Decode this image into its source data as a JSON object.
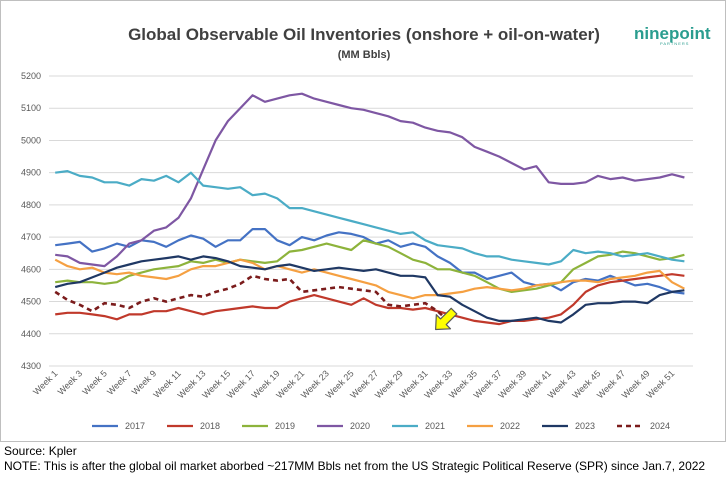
{
  "branding": {
    "logo_text": "ninepoint",
    "logo_sub": "PARTNERS"
  },
  "footer": {
    "source": "Source: Kpler",
    "note": "NOTE: This is after the global oil market aborbed ~217MM Bbls net from the US Strategic Political Reserve (SPR) since Jan.7, 2022"
  },
  "chart_data": {
    "type": "line",
    "title": "Global Observable Oil Inventories (onshore + oil-on-water)",
    "subtitle": "(MM Bbls)",
    "ylim": [
      4300,
      5200
    ],
    "yticks": [
      4300,
      4400,
      4500,
      4600,
      4700,
      4800,
      4900,
      5000,
      5100,
      5200
    ],
    "x_count": 52,
    "x_tick_labels": [
      "Week 1",
      "Week 3",
      "Week 5",
      "Week 7",
      "Week 9",
      "Week 11",
      "Week 13",
      "Week 15",
      "Week 17",
      "Week 19",
      "Week 21",
      "Week 23",
      "Week 25",
      "Week 27",
      "Week 29",
      "Week 31",
      "Week 33",
      "Week 35",
      "Week 37",
      "Week 39",
      "Week 41",
      "Week 43",
      "Week 45",
      "Week 47",
      "Week 49",
      "Week 51"
    ],
    "x_tick_weeks": [
      1,
      3,
      5,
      7,
      9,
      11,
      13,
      15,
      17,
      19,
      21,
      23,
      25,
      27,
      29,
      31,
      33,
      35,
      37,
      39,
      41,
      43,
      45,
      47,
      49,
      51
    ],
    "grid": true,
    "legend_position": "bottom",
    "series": [
      {
        "name": "2017",
        "color": "#4472c4",
        "dashed": false,
        "values": [
          4675,
          4680,
          4685,
          4655,
          4665,
          4680,
          4670,
          4690,
          4685,
          4670,
          4690,
          4705,
          4695,
          4670,
          4690,
          4690,
          4725,
          4725,
          4690,
          4675,
          4700,
          4690,
          4705,
          4715,
          4710,
          4700,
          4680,
          4690,
          4670,
          4680,
          4670,
          4640,
          4620,
          4590,
          4590,
          4570,
          4580,
          4590,
          4560,
          4550,
          4555,
          4535,
          4560,
          4570,
          4565,
          4580,
          4565,
          4550,
          4555,
          4545,
          4530,
          4525
        ]
      },
      {
        "name": "2018",
        "color": "#c0392b",
        "dashed": false,
        "values": [
          4460,
          4465,
          4465,
          4460,
          4455,
          4445,
          4460,
          4460,
          4470,
          4470,
          4480,
          4470,
          4460,
          4470,
          4475,
          4480,
          4485,
          4480,
          4480,
          4500,
          4510,
          4520,
          4510,
          4500,
          4490,
          4510,
          4490,
          4480,
          4480,
          4475,
          4480,
          4470,
          4460,
          4450,
          4440,
          4435,
          4430,
          4440,
          4440,
          4445,
          4450,
          4460,
          4490,
          4530,
          4550,
          4560,
          4565,
          4570,
          4575,
          4580,
          4585,
          4580
        ]
      },
      {
        "name": "2019",
        "color": "#8db33b",
        "dashed": false,
        "values": [
          4560,
          4565,
          4560,
          4560,
          4555,
          4560,
          4580,
          4590,
          4600,
          4605,
          4610,
          4625,
          4620,
          4630,
          4620,
          4630,
          4625,
          4620,
          4625,
          4655,
          4660,
          4670,
          4680,
          4670,
          4660,
          4690,
          4680,
          4670,
          4650,
          4630,
          4620,
          4600,
          4600,
          4590,
          4580,
          4560,
          4540,
          4530,
          4535,
          4540,
          4550,
          4560,
          4600,
          4620,
          4640,
          4645,
          4655,
          4650,
          4640,
          4630,
          4635,
          4645
        ]
      },
      {
        "name": "2020",
        "color": "#7e57a3",
        "dashed": false,
        "values": [
          4645,
          4640,
          4620,
          4615,
          4610,
          4640,
          4680,
          4690,
          4720,
          4730,
          4760,
          4820,
          4910,
          5000,
          5060,
          5100,
          5140,
          5120,
          5130,
          5140,
          5145,
          5130,
          5120,
          5110,
          5100,
          5095,
          5085,
          5075,
          5060,
          5055,
          5040,
          5030,
          5025,
          5010,
          4980,
          4965,
          4950,
          4930,
          4910,
          4920,
          4870,
          4865,
          4865,
          4870,
          4890,
          4880,
          4885,
          4875,
          4880,
          4885,
          4895,
          4885
        ]
      },
      {
        "name": "2021",
        "color": "#4bacc6",
        "dashed": false,
        "values": [
          4900,
          4905,
          4890,
          4885,
          4870,
          4870,
          4860,
          4880,
          4875,
          4890,
          4870,
          4900,
          4860,
          4855,
          4850,
          4855,
          4830,
          4835,
          4820,
          4790,
          4790,
          4780,
          4770,
          4760,
          4750,
          4740,
          4730,
          4720,
          4710,
          4715,
          4690,
          4675,
          4670,
          4665,
          4650,
          4640,
          4640,
          4630,
          4625,
          4620,
          4615,
          4625,
          4660,
          4650,
          4655,
          4650,
          4640,
          4645,
          4650,
          4640,
          4630,
          4625
        ]
      },
      {
        "name": "2022",
        "color": "#f5a042",
        "dashed": false,
        "values": [
          4630,
          4610,
          4600,
          4605,
          4590,
          4585,
          4590,
          4580,
          4575,
          4570,
          4580,
          4600,
          4610,
          4610,
          4620,
          4630,
          4620,
          4600,
          4610,
          4600,
          4590,
          4600,
          4590,
          4580,
          4570,
          4560,
          4550,
          4530,
          4520,
          4510,
          4520,
          4520,
          4525,
          4530,
          4540,
          4545,
          4540,
          4535,
          4540,
          4550,
          4555,
          4560,
          4565,
          4565,
          4560,
          4570,
          4575,
          4580,
          4590,
          4595,
          4560,
          4540
        ]
      },
      {
        "name": "2023",
        "color": "#1f3864",
        "dashed": false,
        "values": [
          4545,
          4555,
          4560,
          4575,
          4590,
          4605,
          4615,
          4625,
          4630,
          4635,
          4640,
          4630,
          4640,
          4635,
          4625,
          4610,
          4605,
          4600,
          4610,
          4615,
          4605,
          4595,
          4600,
          4605,
          4600,
          4595,
          4600,
          4590,
          4580,
          4580,
          4575,
          4520,
          4515,
          4490,
          4470,
          4450,
          4440,
          4440,
          4445,
          4450,
          4440,
          4435,
          4460,
          4490,
          4495,
          4495,
          4500,
          4500,
          4495,
          4520,
          4530,
          4535
        ]
      },
      {
        "name": "2024",
        "color": "#7b1c1c",
        "dashed": true,
        "values": [
          4530,
          4505,
          4490,
          4470,
          4495,
          4490,
          4480,
          4500,
          4510,
          4500,
          4510,
          4520,
          4515,
          4530,
          4540,
          4555,
          4580,
          4570,
          4565,
          4570,
          4530,
          4535,
          4540,
          4545,
          4540,
          4535,
          4530,
          4490,
          4485,
          4490,
          4495,
          4470,
          4435,
          null,
          null,
          null,
          null,
          null,
          null,
          null,
          null,
          null,
          null,
          null,
          null,
          null,
          null,
          null,
          null,
          null,
          null,
          null
        ]
      }
    ],
    "annotation": {
      "type": "arrow",
      "color": "#ffff00",
      "points_to_week": 32,
      "points_to_value": 4435
    }
  }
}
